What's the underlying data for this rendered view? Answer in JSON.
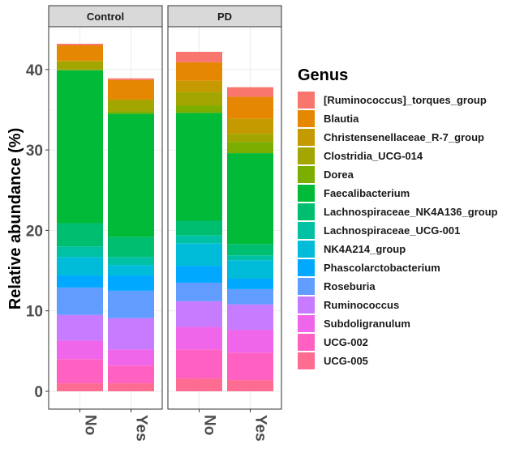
{
  "chart_data": {
    "type": "bar",
    "stacked": true,
    "ylabel": "Relative abundance (%)",
    "xlabel": "",
    "ylim": [
      0,
      45
    ],
    "yticks": [
      0,
      10,
      20,
      30,
      40
    ],
    "grid": true,
    "legend_title": "Genus",
    "legend_position": "right",
    "facets": [
      "Control",
      "PD"
    ],
    "categories": [
      "No",
      "Yes"
    ],
    "series": [
      {
        "name": "UCG-005",
        "color": "#FF6C91",
        "values": {
          "Control": [
            1.0,
            1.0
          ],
          "PD": [
            1.6,
            1.4
          ]
        }
      },
      {
        "name": "UCG-002",
        "color": "#FF61C3",
        "values": {
          "Control": [
            3.0,
            2.2
          ],
          "PD": [
            3.6,
            3.4
          ]
        }
      },
      {
        "name": "Subdoligranulum",
        "color": "#F066EA",
        "values": {
          "Control": [
            2.3,
            2.0
          ],
          "PD": [
            2.8,
            2.8
          ]
        }
      },
      {
        "name": "Ruminococcus",
        "color": "#C77CFF",
        "values": {
          "Control": [
            3.2,
            3.9
          ],
          "PD": [
            3.2,
            3.2
          ]
        }
      },
      {
        "name": "Roseburia",
        "color": "#619CFF",
        "values": {
          "Control": [
            3.4,
            3.4
          ],
          "PD": [
            2.3,
            1.9
          ]
        }
      },
      {
        "name": "Phascolarctobacterium",
        "color": "#00A9FF",
        "values": {
          "Control": [
            1.5,
            1.9
          ],
          "PD": [
            2.1,
            1.3
          ]
        }
      },
      {
        "name": "NK4A214_group",
        "color": "#00BCD8",
        "values": {
          "Control": [
            2.3,
            1.3
          ],
          "PD": [
            2.8,
            2.3
          ]
        }
      },
      {
        "name": "Lachnospiraceae_UCG-001",
        "color": "#00C1A3",
        "values": {
          "Control": [
            1.3,
            1.0
          ],
          "PD": [
            1.0,
            0.6
          ]
        }
      },
      {
        "name": "Lachnospiraceae_NK4A136_group",
        "color": "#00BE70",
        "values": {
          "Control": [
            2.9,
            2.5
          ],
          "PD": [
            1.8,
            1.4
          ]
        }
      },
      {
        "name": "Faecalibacterium",
        "color": "#00BA38",
        "values": {
          "Control": [
            19.0,
            15.3
          ],
          "PD": [
            13.4,
            11.3
          ]
        }
      },
      {
        "name": "Dorea",
        "color": "#7CAE00",
        "values": {
          "Control": [
            0.1,
            0.3
          ],
          "PD": [
            0.9,
            1.4
          ]
        }
      },
      {
        "name": "Clostridia_UCG-014",
        "color": "#A3A500",
        "values": {
          "Control": [
            1.0,
            1.4
          ],
          "PD": [
            1.7,
            1.0
          ]
        }
      },
      {
        "name": "Christensenellaceae_R-7_group",
        "color": "#C49A00",
        "values": {
          "Control": [
            0.1,
            0.1
          ],
          "PD": [
            1.4,
            1.9
          ]
        }
      },
      {
        "name": "Blautia",
        "color": "#E58700",
        "values": {
          "Control": [
            1.9,
            2.4
          ],
          "PD": [
            2.3,
            2.7
          ]
        }
      },
      {
        "name": "[Ruminococcus]_torques_group",
        "color": "#F8766D",
        "values": {
          "Control": [
            0.2,
            0.2
          ],
          "PD": [
            1.3,
            1.2
          ]
        }
      }
    ],
    "legend_order": [
      "[Ruminococcus]_torques_group",
      "Blautia",
      "Christensenellaceae_R-7_group",
      "Clostridia_UCG-014",
      "Dorea",
      "Faecalibacterium",
      "Lachnospiraceae_NK4A136_group",
      "Lachnospiraceae_UCG-001",
      "NK4A214_group",
      "Phascolarctobacterium",
      "Roseburia",
      "Ruminococcus",
      "Subdoligranulum",
      "UCG-002",
      "UCG-005"
    ]
  }
}
